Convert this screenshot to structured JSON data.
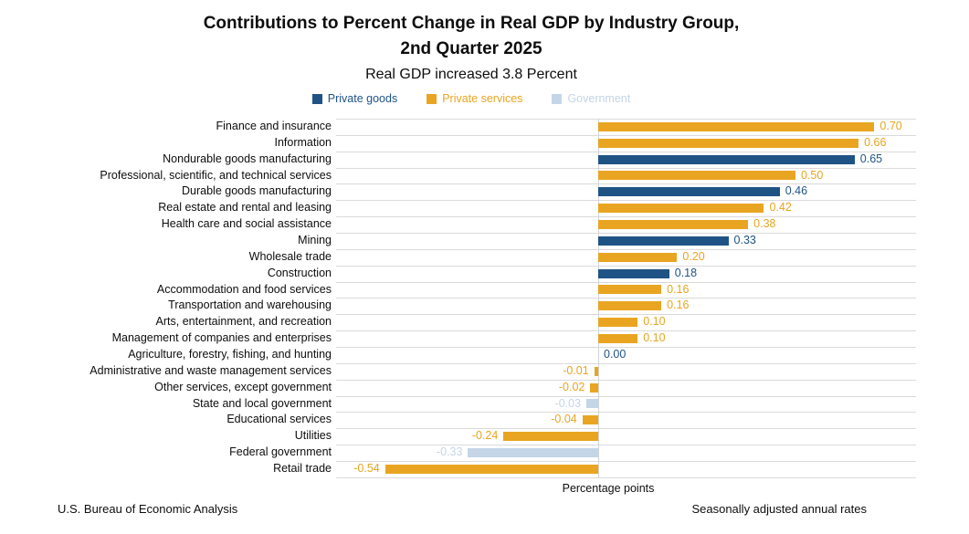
{
  "title": {
    "line1": "Contributions to Percent Change in Real GDP by Industry Group,",
    "line2": "2nd Quarter 2025"
  },
  "subtitle": "Real GDP increased 3.8 Percent",
  "legend": [
    {
      "key": "goods",
      "label": "Private goods"
    },
    {
      "key": "services",
      "label": "Private services"
    },
    {
      "key": "government",
      "label": "Government"
    }
  ],
  "colors": {
    "goods": "#1F5386",
    "services": "#E9A521",
    "government": "#C4D5E8",
    "gridline": "#DADADA"
  },
  "footer": {
    "left": "U.S. Bureau of Economic Analysis",
    "right": "Seasonally adjusted annual rates"
  },
  "chart_data": {
    "type": "bar",
    "orientation": "horizontal",
    "title": "Contributions to Percent Change in Real GDP by Industry Group, 2nd Quarter 2025",
    "subtitle": "Real GDP increased 3.8 Percent",
    "xlabel": "Percentage points",
    "xlim": [
      -0.66,
      0.81
    ],
    "grid": "row-separators",
    "legend_position": "top",
    "rows": [
      {
        "category": "Finance and insurance",
        "value": 0.7,
        "display": "0.70",
        "series": "services"
      },
      {
        "category": "Information",
        "value": 0.66,
        "display": "0.66",
        "series": "services"
      },
      {
        "category": "Nondurable goods manufacturing",
        "value": 0.65,
        "display": "0.65",
        "series": "goods"
      },
      {
        "category": "Professional, scientific, and technical services",
        "value": 0.5,
        "display": "0.50",
        "series": "services"
      },
      {
        "category": "Durable goods manufacturing",
        "value": 0.46,
        "display": "0.46",
        "series": "goods"
      },
      {
        "category": "Real estate and rental and leasing",
        "value": 0.42,
        "display": "0.42",
        "series": "services"
      },
      {
        "category": "Health care and social assistance",
        "value": 0.38,
        "display": "0.38",
        "series": "services"
      },
      {
        "category": "Mining",
        "value": 0.33,
        "display": "0.33",
        "series": "goods"
      },
      {
        "category": "Wholesale trade",
        "value": 0.2,
        "display": "0.20",
        "series": "services"
      },
      {
        "category": "Construction",
        "value": 0.18,
        "display": "0.18",
        "series": "goods"
      },
      {
        "category": "Accommodation and food services",
        "value": 0.16,
        "display": "0.16",
        "series": "services"
      },
      {
        "category": "Transportation and warehousing",
        "value": 0.16,
        "display": "0.16",
        "series": "services"
      },
      {
        "category": "Arts, entertainment, and recreation",
        "value": 0.1,
        "display": "0.10",
        "series": "services"
      },
      {
        "category": "Management of companies and enterprises",
        "value": 0.1,
        "display": "0.10",
        "series": "services"
      },
      {
        "category": "Agriculture, forestry, fishing, and hunting",
        "value": 0.0,
        "display": "0.00",
        "series": "goods"
      },
      {
        "category": "Administrative and waste management services",
        "value": -0.01,
        "display": "-0.01",
        "series": "services"
      },
      {
        "category": "Other services, except government",
        "value": -0.02,
        "display": "-0.02",
        "series": "services"
      },
      {
        "category": "State and local government",
        "value": -0.03,
        "display": "-0.03",
        "series": "government"
      },
      {
        "category": "Educational services",
        "value": -0.04,
        "display": "-0.04",
        "series": "services"
      },
      {
        "category": "Utilities",
        "value": -0.24,
        "display": "-0.24",
        "series": "services"
      },
      {
        "category": "Federal government",
        "value": -0.33,
        "display": "-0.33",
        "series": "government"
      },
      {
        "category": "Retail trade",
        "value": -0.54,
        "display": "-0.54",
        "series": "services"
      }
    ]
  }
}
